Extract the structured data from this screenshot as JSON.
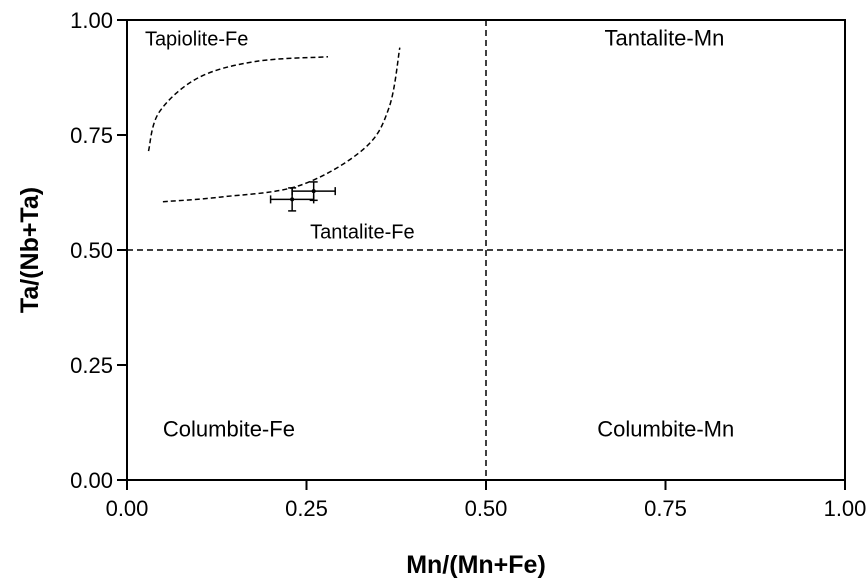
{
  "chart_data": {
    "type": "scatter",
    "title": "",
    "xlabel": "Mn/(Mn+Fe)",
    "ylabel": "Ta/(Nb+Ta)",
    "xlim": [
      0,
      1
    ],
    "ylim": [
      0,
      1
    ],
    "x_ticks": [
      {
        "value": 0,
        "label": "0.00"
      },
      {
        "value": 0.25,
        "label": "0.25"
      },
      {
        "value": 0.5,
        "label": "0.50"
      },
      {
        "value": 0.75,
        "label": "0.75"
      },
      {
        "value": 1,
        "label": "1.00"
      }
    ],
    "y_ticks": [
      {
        "value": 0,
        "label": "0.00"
      },
      {
        "value": 0.25,
        "label": "0.25"
      },
      {
        "value": 0.5,
        "label": "0.50"
      },
      {
        "value": 0.75,
        "label": "0.75"
      },
      {
        "value": 1,
        "label": "1.00"
      }
    ],
    "grid": false,
    "divider_lines": [
      {
        "orientation": "vertical",
        "value": 0.5,
        "style": "dashed"
      },
      {
        "orientation": "horizontal",
        "value": 0.5,
        "style": "dashed"
      }
    ],
    "region_labels": [
      {
        "text": "Tapiolite-Fe",
        "x": 0.025,
        "y": 0.945
      },
      {
        "text": "Tantalite-Mn",
        "x": 0.665,
        "y": 0.945
      },
      {
        "text": "Tantalite-Fe",
        "x": 0.255,
        "y": 0.525
      },
      {
        "text": "Columbite-Fe",
        "x": 0.05,
        "y": 0.095
      },
      {
        "text": "Columbite-Mn",
        "x": 0.655,
        "y": 0.095
      }
    ],
    "field_boundary": [
      {
        "style": "dashed",
        "points": [
          [
            0.03,
            0.715
          ],
          [
            0.045,
            0.8
          ],
          [
            0.1,
            0.875
          ],
          [
            0.18,
            0.91
          ],
          [
            0.28,
            0.92
          ]
        ]
      },
      {
        "style": "dashed",
        "points": [
          [
            0.05,
            0.605
          ],
          [
            0.13,
            0.615
          ],
          [
            0.24,
            0.64
          ],
          [
            0.33,
            0.72
          ],
          [
            0.365,
            0.81
          ],
          [
            0.38,
            0.94
          ]
        ]
      }
    ],
    "points": [
      {
        "x": 0.23,
        "y": 0.61,
        "x_err": 0.03,
        "y_err": 0.025
      },
      {
        "x": 0.26,
        "y": 0.628,
        "x_err": 0.03,
        "y_err": 0.02
      }
    ]
  }
}
